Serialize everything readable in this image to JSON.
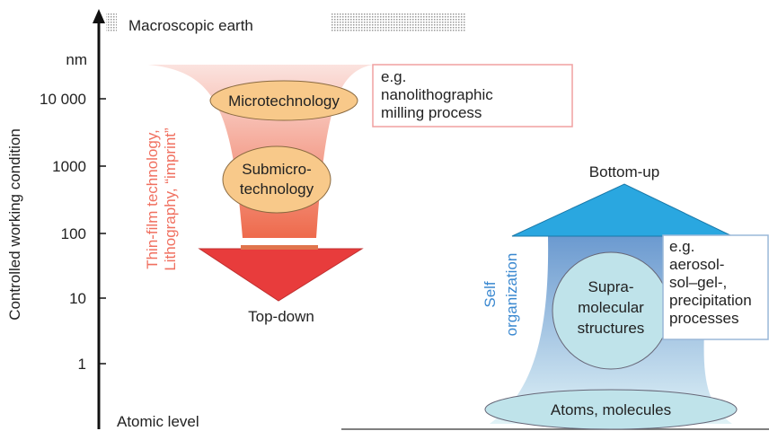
{
  "axis": {
    "top_label": "Macroscopic earth",
    "bottom_label": "Atomic level",
    "unit": "nm",
    "title": "Controlled working condition",
    "ticks": [
      "10 000",
      "1000",
      "100",
      "10",
      "1"
    ]
  },
  "top_down": {
    "label": "Top-down",
    "side_text": [
      "Thin-film technology,",
      "Lithography, “imprint”"
    ],
    "stages": [
      [
        "Microtechnology"
      ],
      [
        "Submicro-",
        "technology"
      ]
    ],
    "example": [
      "e.g.",
      "nanolithographic",
      "milling process"
    ]
  },
  "bottom_up": {
    "label": "Bottom-up",
    "side_text": [
      "Self",
      "organization"
    ],
    "stages": [
      [
        "Supra-",
        "molecular",
        "structures"
      ],
      [
        "Atoms, molecules"
      ]
    ],
    "example": [
      "e.g.",
      "aerosol-",
      "sol–gel-,",
      "precipitation",
      "processes"
    ]
  }
}
